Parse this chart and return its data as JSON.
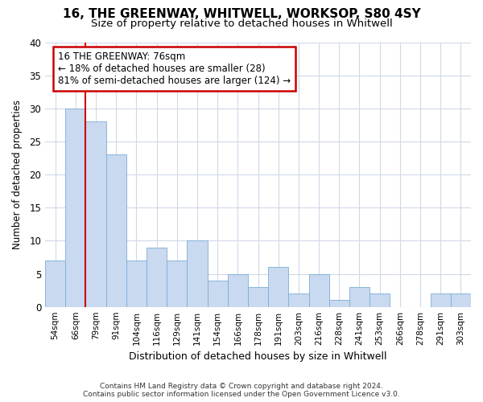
{
  "title_line1": "16, THE GREENWAY, WHITWELL, WORKSOP, S80 4SY",
  "title_line2": "Size of property relative to detached houses in Whitwell",
  "xlabel": "Distribution of detached houses by size in Whitwell",
  "ylabel": "Number of detached properties",
  "categories": [
    "54sqm",
    "66sqm",
    "79sqm",
    "91sqm",
    "104sqm",
    "116sqm",
    "129sqm",
    "141sqm",
    "154sqm",
    "166sqm",
    "178sqm",
    "191sqm",
    "203sqm",
    "216sqm",
    "228sqm",
    "241sqm",
    "253sqm",
    "266sqm",
    "278sqm",
    "291sqm",
    "303sqm"
  ],
  "values": [
    7,
    30,
    28,
    23,
    7,
    9,
    7,
    10,
    4,
    5,
    3,
    6,
    2,
    5,
    1,
    3,
    2,
    0,
    0,
    2,
    2
  ],
  "bar_color": "#c8d9f0",
  "bar_edgecolor": "#7bafd4",
  "subject_label": "16 THE GREENWAY: 76sqm",
  "annotation_line1": "← 18% of detached houses are smaller (28)",
  "annotation_line2": "81% of semi-detached houses are larger (124) →",
  "annotation_box_color": "white",
  "annotation_box_edgecolor": "#cc0000",
  "redline_color": "#cc0000",
  "ylim": [
    0,
    40
  ],
  "yticks": [
    0,
    5,
    10,
    15,
    20,
    25,
    30,
    35,
    40
  ],
  "footnote1": "Contains HM Land Registry data © Crown copyright and database right 2024.",
  "footnote2": "Contains public sector information licensed under the Open Government Licence v3.0.",
  "background_color": "#ffffff",
  "grid_color": "#d0d8e8"
}
